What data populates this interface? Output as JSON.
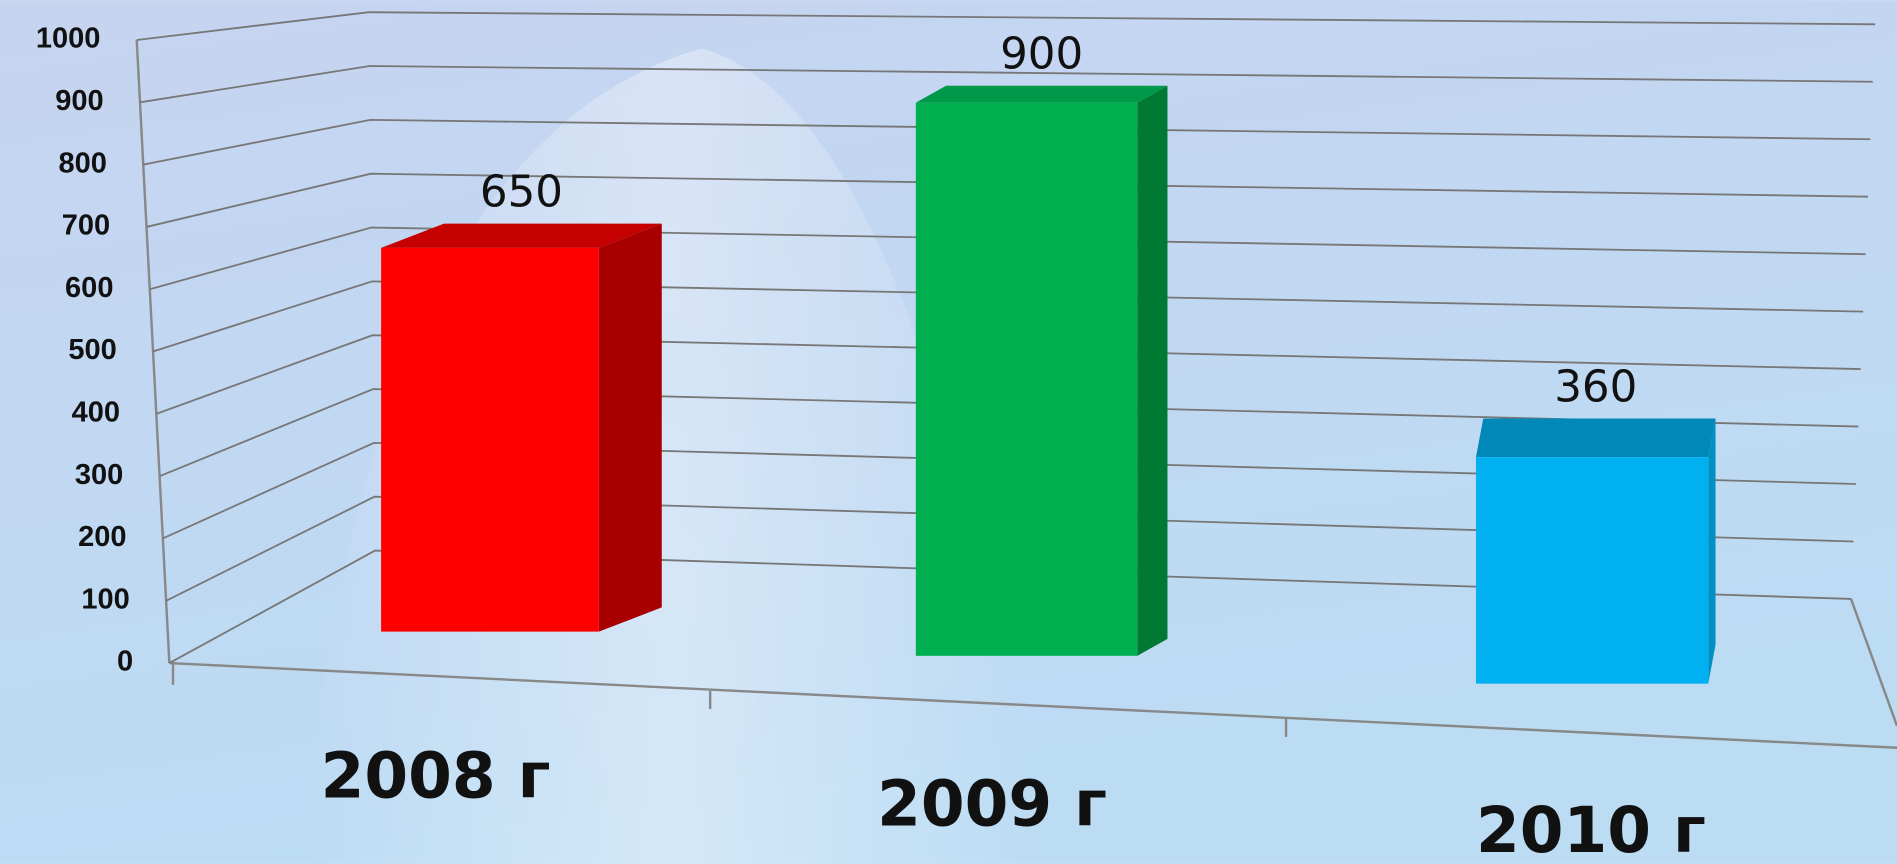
{
  "chart_data": {
    "type": "bar3d",
    "categories": [
      "2008 г",
      "2009 г",
      "2010 г"
    ],
    "values": [
      650,
      900,
      360
    ],
    "colors": [
      "#ff0000",
      "#00b050",
      "#00b0f0"
    ],
    "ylim": [
      0,
      1000
    ],
    "yticks": [
      0,
      100,
      200,
      300,
      400,
      500,
      600,
      700,
      800,
      900,
      1000
    ],
    "grid": true
  }
}
